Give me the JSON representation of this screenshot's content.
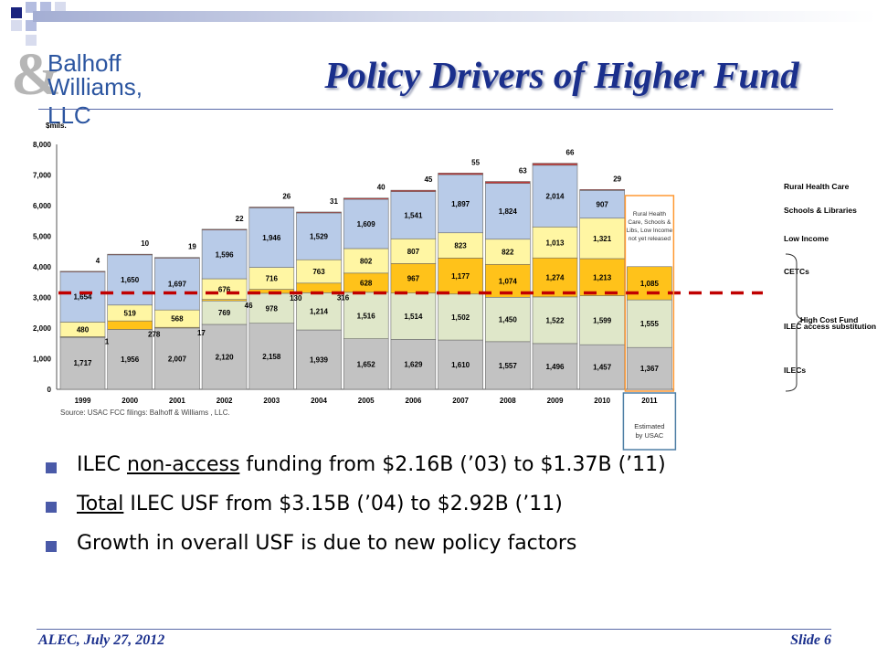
{
  "header": {
    "title": "Policy Drivers of Higher Fund",
    "logo_line1": "Balhoff",
    "logo_line2": "Williams, LLC",
    "logo_mark": "&"
  },
  "colors": {
    "ILECs": "#c2c2c2",
    "ILEC access substitution": "#dfe7c9",
    "CETCs": "#ffc21a",
    "Low Income": "#fff6a3",
    "Schools & Libraries": "#b8cbe8",
    "Rural Health Care": "#c23a3a",
    "reference_line": "#c00000",
    "estimate_box": "#ff9933",
    "estimate_box_2011": "#4f7fa5"
  },
  "chart_data": {
    "type": "bar",
    "stacked": true,
    "unit_label": "$mils.",
    "categories": [
      "1999",
      "2000",
      "2001",
      "2002",
      "2003",
      "2004",
      "2005",
      "2006",
      "2007",
      "2008",
      "2009",
      "2010",
      "2011"
    ],
    "ylim": [
      0,
      8000
    ],
    "yticks": [
      0,
      1000,
      2000,
      3000,
      4000,
      5000,
      6000,
      7000,
      8000
    ],
    "ytick_labels": [
      "0",
      "1,000",
      "2,000",
      "3,000",
      "4,000",
      "5,000",
      "6,000",
      "7,000",
      "8,000"
    ],
    "grid": false,
    "series": [
      {
        "name": "ILECs",
        "values": [
          1717,
          1956,
          2007,
          2120,
          2158,
          1939,
          1652,
          1629,
          1610,
          1557,
          1496,
          1457,
          1367
        ],
        "labels": [
          "1,717",
          "1,956",
          "2,007",
          "2,120",
          "2,158",
          "1,939",
          "1,652",
          "1,629",
          "1,610",
          "1,557",
          "1,496",
          "1,457",
          "1,367"
        ]
      },
      {
        "name": "ILEC access substitution",
        "values": [
          0,
          0,
          0,
          769,
          978,
          1214,
          1516,
          1514,
          1502,
          1450,
          1522,
          1599,
          1555
        ],
        "labels": [
          "",
          "",
          "",
          "769",
          "978",
          "1,214",
          "1,516",
          "1,514",
          "1,502",
          "1,450",
          "1,522",
          "1,599",
          "1,555"
        ]
      },
      {
        "name": "CETCs",
        "values": [
          1,
          278,
          17,
          46,
          130,
          316,
          628,
          967,
          1177,
          1074,
          1274,
          1213,
          1085
        ],
        "labels": [
          "1",
          "278",
          "17",
          "46",
          "130",
          "316",
          "628",
          "967",
          "1,177",
          "1,074",
          "1,274",
          "1,213",
          "1,085"
        ]
      },
      {
        "name": "Low Income",
        "values": [
          480,
          519,
          568,
          676,
          716,
          763,
          802,
          807,
          823,
          822,
          1013,
          1321,
          0
        ],
        "labels": [
          "480",
          "519",
          "568",
          "676",
          "716",
          "763",
          "802",
          "807",
          "823",
          "822",
          "1,013",
          "1,321",
          ""
        ]
      },
      {
        "name": "Schools & Libraries",
        "values": [
          1654,
          1650,
          1697,
          1596,
          1946,
          1529,
          1609,
          1541,
          1897,
          1824,
          2014,
          907,
          0
        ],
        "labels": [
          "1,654",
          "1,650",
          "1,697",
          "1,596",
          "1,946",
          "1,529",
          "1,609",
          "1,541",
          "1,897",
          "1,824",
          "2,014",
          "907",
          ""
        ]
      },
      {
        "name": "Rural Health Care",
        "values": [
          4,
          10,
          19,
          22,
          26,
          31,
          40,
          45,
          55,
          63,
          66,
          29,
          0
        ],
        "labels": [
          "4",
          "10",
          "19",
          "22",
          "26",
          "31",
          "40",
          "45",
          "55",
          "63",
          "66",
          "29",
          ""
        ]
      }
    ],
    "reference_line_value": 3150,
    "source": "Source: USAC FCC filings: Balhoff  & Williams , LLC.",
    "estimate_box_text": [
      "Rural Health",
      "Care, Schools &",
      "Libs, Low Income",
      "not yet released"
    ],
    "estimate_note": [
      "Estimated",
      "by USAC"
    ],
    "legend": [
      "Rural Health Care",
      "Schools & Libraries",
      "Low Income",
      "CETCs",
      "ILEC access substitution",
      "ILECs"
    ],
    "brace_label": "High Cost Fund"
  },
  "bullets": [
    {
      "pre": "ILEC ",
      "u": "non-access",
      "post": " funding from $2.16B (’03) to $1.37B (’11)"
    },
    {
      "pre": "",
      "u": "Total",
      "post": " ILEC USF  from $3.15B (’04) to $2.92B (’11)"
    },
    {
      "pre": "Growth in overall USF is due to new policy factors",
      "u": "",
      "post": ""
    }
  ],
  "footer": {
    "left": "ALEC, July 27, 2012",
    "right": "Slide 6"
  }
}
